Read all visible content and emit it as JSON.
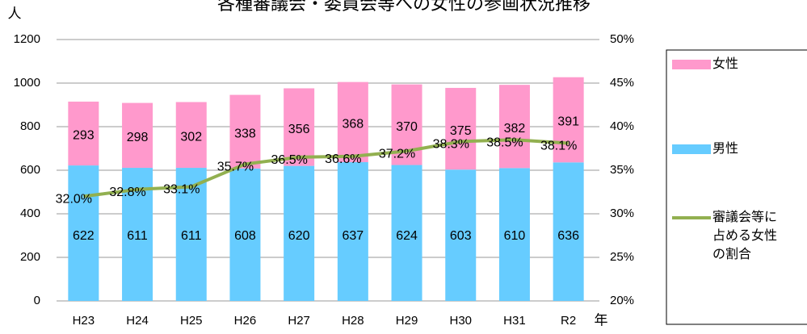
{
  "chart_data": {
    "type": "bar",
    "title": "各種審議会・委員会等への女性の参画状況推移",
    "y_label": "人",
    "x_label": "年",
    "categories": [
      "H23",
      "H24",
      "H25",
      "H26",
      "H27",
      "H28",
      "H29",
      "H30",
      "H31",
      "R2"
    ],
    "stacked": true,
    "series": [
      {
        "name": "男性",
        "color": "#66ccff",
        "values": [
          622,
          611,
          611,
          608,
          620,
          637,
          624,
          603,
          610,
          636
        ]
      },
      {
        "name": "女性",
        "color": "#ff99cc",
        "values": [
          293,
          298,
          302,
          338,
          356,
          368,
          370,
          375,
          382,
          391
        ]
      },
      {
        "name": "審議会等に占める女性の割合",
        "type": "line",
        "axis": "y2",
        "color": "#92b050",
        "values": [
          32.0,
          32.8,
          33.1,
          35.7,
          36.5,
          36.6,
          37.2,
          38.3,
          38.5,
          38.1
        ],
        "value_labels": [
          "32.0%",
          "32.8%",
          "33.1%",
          "35.7%",
          "36.5%",
          "36.6%",
          "37.2%",
          "38.3%",
          "38.5%",
          "38.1%"
        ]
      }
    ],
    "ylim": [
      0,
      1200
    ],
    "yticks": [
      0,
      200,
      400,
      600,
      800,
      1000,
      1200
    ],
    "y2lim": [
      20,
      50
    ],
    "y2ticks": [
      {
        "value": 20,
        "label": "20%"
      },
      {
        "value": 25,
        "label": "25%"
      },
      {
        "value": 30,
        "label": "30%"
      },
      {
        "value": 35,
        "label": "35%"
      },
      {
        "value": 40,
        "label": "40%"
      },
      {
        "value": 45,
        "label": "45%"
      },
      {
        "value": 50,
        "label": "50%"
      }
    ],
    "grid": true
  }
}
